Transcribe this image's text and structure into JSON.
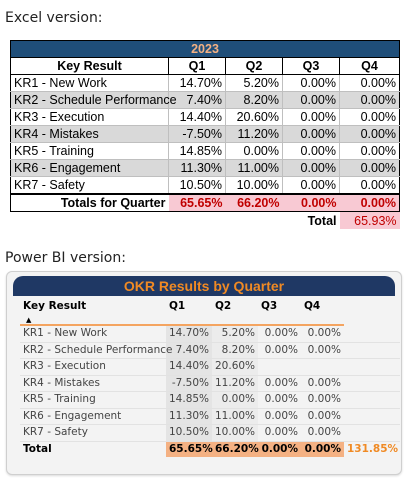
{
  "excel": {
    "caption": "Excel version:",
    "year": "2023",
    "headers": [
      "Key Result",
      "Q1",
      "Q2",
      "Q3",
      "Q4"
    ],
    "rows": [
      [
        "KR1 - New Work",
        "14.70%",
        "5.20%",
        "0.00%",
        "0.00%"
      ],
      [
        "KR2 - Schedule Performance",
        "7.40%",
        "8.20%",
        "0.00%",
        "0.00%"
      ],
      [
        "KR3 - Execution",
        "14.40%",
        "20.60%",
        "0.00%",
        "0.00%"
      ],
      [
        "KR4 - Mistakes",
        "-7.50%",
        "11.20%",
        "0.00%",
        "0.00%"
      ],
      [
        "KR5 - Training",
        "14.85%",
        "0.00%",
        "0.00%",
        "0.00%"
      ],
      [
        "KR6 - Engagement",
        "11.30%",
        "11.00%",
        "0.00%",
        "0.00%"
      ],
      [
        "KR7 - Safety",
        "10.50%",
        "10.00%",
        "0.00%",
        "0.00%"
      ]
    ],
    "totals_label": "Totals for Quarter",
    "totals": [
      "65.65%",
      "66.20%",
      "0.00%",
      "0.00%"
    ],
    "grand_label": "Total",
    "grand_value": "65.93%",
    "colors": {
      "header_bg": "#1f4e79",
      "header_text": "#f4b183",
      "highlight_bg": "#f8c9d3",
      "highlight_text": "#c00000",
      "band": "#d9d9d9"
    }
  },
  "powerbi": {
    "caption": "Power BI version:",
    "title": "OKR Results by Quarter",
    "headers": [
      "Key Result",
      "Q1",
      "Q2",
      "Q3",
      "Q4"
    ],
    "sort_icon": "sort-ascending-icon",
    "rows": [
      [
        "KR1 - New Work",
        "14.70%",
        "5.20%",
        "0.00%",
        "0.00%"
      ],
      [
        "KR2 - Schedule Performance",
        "7.40%",
        "8.20%",
        "0.00%",
        "0.00%"
      ],
      [
        "KR3 - Execution",
        "14.40%",
        "20.60%",
        "",
        ""
      ],
      [
        "KR4 - Mistakes",
        "-7.50%",
        "11.20%",
        "0.00%",
        "0.00%"
      ],
      [
        "KR5 - Training",
        "14.85%",
        "0.00%",
        "0.00%",
        "0.00%"
      ],
      [
        "KR6 - Engagement",
        "11.30%",
        "11.00%",
        "0.00%",
        "0.00%"
      ],
      [
        "KR7 - Safety",
        "10.50%",
        "10.00%",
        "0.00%",
        "0.00%"
      ]
    ],
    "totals_label": "Total",
    "totals": [
      "65.65%",
      "66.20%",
      "0.00%",
      "0.00%"
    ],
    "grand_value": "131.85%",
    "colors": {
      "title_bg": "#1f3864",
      "title_text": "#f08a24",
      "total_bg": "#f4b183",
      "grand_text": "#f08a24"
    }
  }
}
